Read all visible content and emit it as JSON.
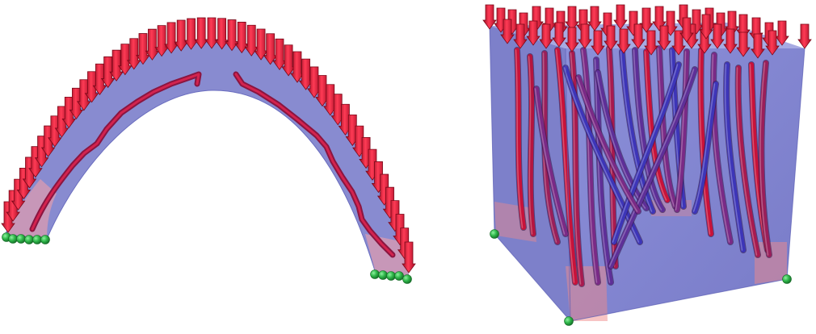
{
  "colors": {
    "background": "#ffffff",
    "volume_fill": "#6f72c9",
    "volume_edge": "#5b5eb8",
    "corner_tint": "#f08a8a",
    "stress_red": "#c8123a",
    "stress_purple": "#7a2a86",
    "stress_blue": "#3d35b8",
    "load_arrow": "#e0102e",
    "load_arrow_dark": "#8e0a1d",
    "support_point": "#2fb84a",
    "support_point_dark": "#1c7a30"
  },
  "panels": [
    {
      "name": "arch",
      "kind": "arch-structure"
    },
    {
      "name": "cube",
      "kind": "cube-structure"
    }
  ],
  "icons": {
    "load": "down-arrow",
    "support": "sphere"
  }
}
